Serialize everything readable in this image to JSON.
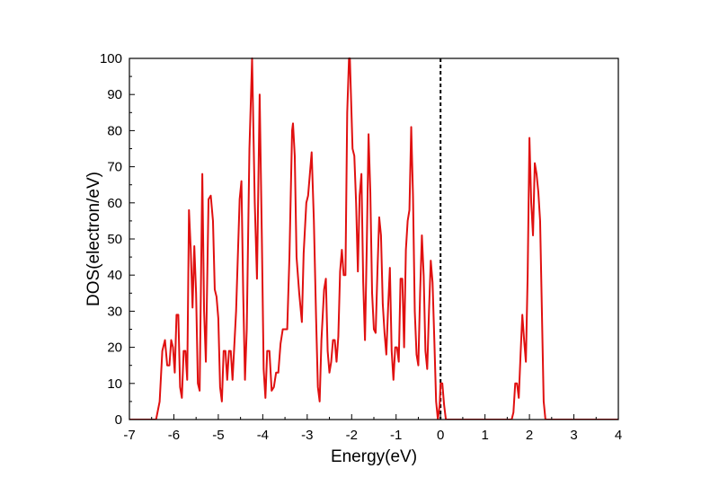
{
  "chart_data": {
    "type": "line",
    "title": "",
    "xlabel": "Energy(eV)",
    "ylabel": "DOS(electron/eV)",
    "xlim": [
      -7,
      4
    ],
    "ylim": [
      0,
      100
    ],
    "x_ticks": [
      -7,
      -6,
      -5,
      -4,
      -3,
      -2,
      -1,
      0,
      1,
      2,
      3,
      4
    ],
    "y_ticks": [
      0,
      10,
      20,
      30,
      40,
      50,
      60,
      70,
      80,
      90,
      100
    ],
    "grid": false,
    "legend": "none",
    "line_color": "#e01010",
    "fermi_line": {
      "x": 0,
      "style": "dashed",
      "color": "#000000"
    },
    "series": [
      {
        "points": [
          [
            -7.0,
            0
          ],
          [
            -6.4,
            0
          ],
          [
            -6.32,
            5
          ],
          [
            -6.26,
            19
          ],
          [
            -6.2,
            22
          ],
          [
            -6.15,
            15
          ],
          [
            -6.1,
            15
          ],
          [
            -6.06,
            22
          ],
          [
            -6.02,
            20
          ],
          [
            -5.98,
            13
          ],
          [
            -5.94,
            29
          ],
          [
            -5.9,
            29
          ],
          [
            -5.86,
            9
          ],
          [
            -5.82,
            6
          ],
          [
            -5.78,
            19
          ],
          [
            -5.74,
            19
          ],
          [
            -5.7,
            11
          ],
          [
            -5.66,
            58
          ],
          [
            -5.62,
            47
          ],
          [
            -5.58,
            31
          ],
          [
            -5.54,
            48
          ],
          [
            -5.5,
            35
          ],
          [
            -5.46,
            10
          ],
          [
            -5.42,
            8
          ],
          [
            -5.36,
            68
          ],
          [
            -5.32,
            30
          ],
          [
            -5.28,
            16
          ],
          [
            -5.22,
            61
          ],
          [
            -5.17,
            62
          ],
          [
            -5.12,
            55
          ],
          [
            -5.08,
            36
          ],
          [
            -5.04,
            34
          ],
          [
            -5.0,
            28
          ],
          [
            -4.96,
            9
          ],
          [
            -4.92,
            5
          ],
          [
            -4.88,
            19
          ],
          [
            -4.84,
            19
          ],
          [
            -4.8,
            11
          ],
          [
            -4.76,
            19
          ],
          [
            -4.72,
            19
          ],
          [
            -4.68,
            11
          ],
          [
            -4.6,
            30
          ],
          [
            -4.52,
            61
          ],
          [
            -4.48,
            66
          ],
          [
            -4.44,
            35
          ],
          [
            -4.4,
            11
          ],
          [
            -4.36,
            25
          ],
          [
            -4.3,
            75
          ],
          [
            -4.24,
            100
          ],
          [
            -4.18,
            60
          ],
          [
            -4.13,
            39
          ],
          [
            -4.07,
            90
          ],
          [
            -4.02,
            50
          ],
          [
            -3.98,
            14
          ],
          [
            -3.94,
            6
          ],
          [
            -3.9,
            19
          ],
          [
            -3.85,
            19
          ],
          [
            -3.8,
            8
          ],
          [
            -3.75,
            9
          ],
          [
            -3.7,
            13
          ],
          [
            -3.65,
            13
          ],
          [
            -3.6,
            21
          ],
          [
            -3.55,
            25
          ],
          [
            -3.45,
            25
          ],
          [
            -3.4,
            45
          ],
          [
            -3.34,
            80
          ],
          [
            -3.32,
            82
          ],
          [
            -3.28,
            73
          ],
          [
            -3.24,
            45
          ],
          [
            -3.18,
            35
          ],
          [
            -3.12,
            27
          ],
          [
            -3.08,
            46
          ],
          [
            -3.02,
            60
          ],
          [
            -2.98,
            62
          ],
          [
            -2.9,
            74
          ],
          [
            -2.85,
            55
          ],
          [
            -2.8,
            28
          ],
          [
            -2.76,
            9
          ],
          [
            -2.72,
            5
          ],
          [
            -2.68,
            22
          ],
          [
            -2.62,
            36
          ],
          [
            -2.58,
            39
          ],
          [
            -2.54,
            19
          ],
          [
            -2.5,
            13
          ],
          [
            -2.46,
            16
          ],
          [
            -2.42,
            22
          ],
          [
            -2.38,
            22
          ],
          [
            -2.34,
            16
          ],
          [
            -2.3,
            23
          ],
          [
            -2.26,
            41
          ],
          [
            -2.22,
            47
          ],
          [
            -2.18,
            40
          ],
          [
            -2.14,
            40
          ],
          [
            -2.1,
            85
          ],
          [
            -2.06,
            101
          ],
          [
            -2.04,
            100
          ],
          [
            -1.98,
            75
          ],
          [
            -1.94,
            73
          ],
          [
            -1.9,
            60
          ],
          [
            -1.86,
            41
          ],
          [
            -1.82,
            62
          ],
          [
            -1.78,
            68
          ],
          [
            -1.74,
            38
          ],
          [
            -1.7,
            22
          ],
          [
            -1.66,
            48
          ],
          [
            -1.62,
            79
          ],
          [
            -1.58,
            63
          ],
          [
            -1.54,
            35
          ],
          [
            -1.5,
            25
          ],
          [
            -1.46,
            24
          ],
          [
            -1.42,
            41
          ],
          [
            -1.38,
            56
          ],
          [
            -1.34,
            51
          ],
          [
            -1.3,
            32
          ],
          [
            -1.26,
            24
          ],
          [
            -1.22,
            18
          ],
          [
            -1.18,
            31
          ],
          [
            -1.14,
            42
          ],
          [
            -1.1,
            19
          ],
          [
            -1.06,
            11
          ],
          [
            -1.02,
            20
          ],
          [
            -0.98,
            20
          ],
          [
            -0.94,
            16
          ],
          [
            -0.9,
            39
          ],
          [
            -0.86,
            39
          ],
          [
            -0.82,
            20
          ],
          [
            -0.78,
            47
          ],
          [
            -0.74,
            55
          ],
          [
            -0.7,
            58
          ],
          [
            -0.66,
            81
          ],
          [
            -0.62,
            62
          ],
          [
            -0.58,
            30
          ],
          [
            -0.54,
            18
          ],
          [
            -0.5,
            15
          ],
          [
            -0.46,
            35
          ],
          [
            -0.42,
            51
          ],
          [
            -0.38,
            40
          ],
          [
            -0.34,
            19
          ],
          [
            -0.3,
            14
          ],
          [
            -0.26,
            30
          ],
          [
            -0.22,
            44
          ],
          [
            -0.18,
            38
          ],
          [
            -0.14,
            22
          ],
          [
            -0.1,
            5
          ],
          [
            -0.06,
            0
          ],
          [
            -0.02,
            4
          ],
          [
            0.0,
            10
          ],
          [
            0.04,
            10
          ],
          [
            0.08,
            4
          ],
          [
            0.12,
            0
          ],
          [
            1.6,
            0
          ],
          [
            1.64,
            2
          ],
          [
            1.68,
            10
          ],
          [
            1.72,
            10
          ],
          [
            1.76,
            6
          ],
          [
            1.8,
            18
          ],
          [
            1.84,
            29
          ],
          [
            1.88,
            22
          ],
          [
            1.92,
            16
          ],
          [
            1.96,
            40
          ],
          [
            2.0,
            78
          ],
          [
            2.04,
            60
          ],
          [
            2.08,
            51
          ],
          [
            2.12,
            71
          ],
          [
            2.16,
            68
          ],
          [
            2.2,
            63
          ],
          [
            2.24,
            55
          ],
          [
            2.28,
            30
          ],
          [
            2.32,
            5
          ],
          [
            2.36,
            0
          ],
          [
            4.0,
            0
          ]
        ]
      }
    ]
  }
}
